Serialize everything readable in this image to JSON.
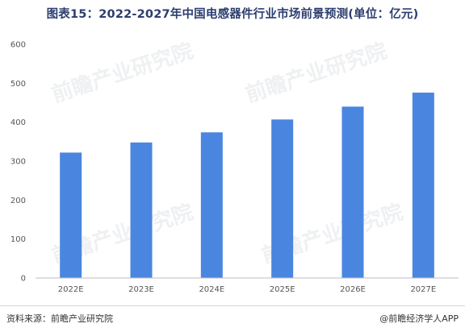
{
  "title": "图表15：2022-2027年中国电感器件行业市场前景预测(单位：亿元)",
  "watermark": "前瞻产业研究院",
  "source": "资料来源：前瞻产业研究院",
  "brand": "@前瞻经济学人APP",
  "colors": {
    "bar": "#4a86e0",
    "title": "#2c3e6f"
  },
  "chart_data": {
    "type": "bar",
    "categories": [
      "2022E",
      "2023E",
      "2024E",
      "2025E",
      "2026E",
      "2027E"
    ],
    "values": [
      322,
      348,
      374,
      407,
      440,
      476
    ],
    "ylim": [
      0,
      600
    ],
    "yticks": [
      0,
      100,
      200,
      300,
      400,
      500,
      600
    ],
    "grid": false,
    "legend": "none"
  }
}
